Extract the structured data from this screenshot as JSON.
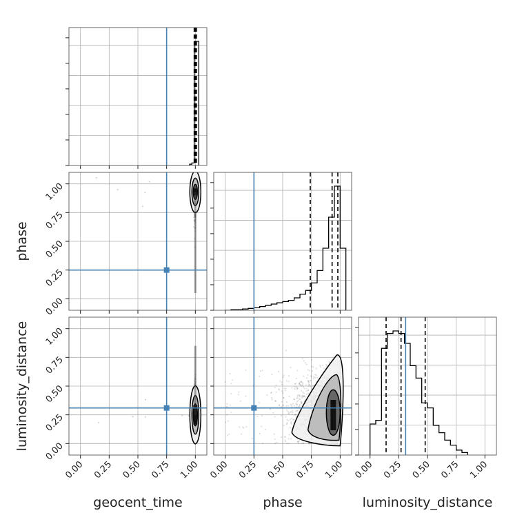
{
  "chart_data": {
    "type": "corner",
    "parameters": [
      "geocent_time",
      "phase",
      "luminosity_distance"
    ],
    "axis_range": [
      -0.1,
      1.1
    ],
    "ticks": [
      0.0,
      0.25,
      0.5,
      0.75,
      1.0
    ],
    "tick_labels": [
      "0.00",
      "0.25",
      "0.50",
      "0.75",
      "1.00"
    ],
    "grid": true,
    "truths": [
      0.75,
      0.25,
      0.31
    ],
    "colors": {
      "truth": "#4682b4",
      "hist": "#000000",
      "grid": "#b0b0b0",
      "points": "#555555"
    },
    "histograms": [
      {
        "param": "geocent_time",
        "bin_edges": [
          0.95,
          0.97,
          0.99,
          1.01,
          1.03
        ],
        "counts": [
          0.01,
          0.02,
          1.0,
          1.0
        ],
        "quantiles": [
          0.99,
          1.0,
          1.01
        ]
      },
      {
        "param": "phase",
        "bin_edges": [
          0.0,
          0.05,
          0.1,
          0.15,
          0.2,
          0.25,
          0.3,
          0.35,
          0.4,
          0.45,
          0.5,
          0.55,
          0.6,
          0.65,
          0.7,
          0.75,
          0.8,
          0.85,
          0.9,
          0.95,
          1.0,
          1.05
        ],
        "counts": [
          0.0,
          0.005,
          0.005,
          0.01,
          0.015,
          0.02,
          0.03,
          0.04,
          0.05,
          0.06,
          0.07,
          0.08,
          0.1,
          0.13,
          0.16,
          0.22,
          0.32,
          0.5,
          0.75,
          1.0,
          0.5
        ],
        "quantiles": [
          0.74,
          0.93,
          0.98
        ]
      },
      {
        "param": "luminosity_distance",
        "bin_edges": [
          0.0,
          0.05,
          0.1,
          0.15,
          0.2,
          0.25,
          0.3,
          0.35,
          0.4,
          0.45,
          0.5,
          0.55,
          0.6,
          0.65,
          0.7,
          0.75,
          0.8,
          0.85
        ],
        "counts": [
          0.25,
          0.28,
          0.86,
          0.98,
          1.0,
          0.98,
          0.9,
          0.72,
          0.62,
          0.42,
          0.38,
          0.24,
          0.18,
          0.12,
          0.08,
          0.04,
          0.02
        ],
        "quantiles": [
          0.14,
          0.27,
          0.48
        ]
      }
    ],
    "scatter_2d": [
      {
        "x_param": "geocent_time",
        "y_param": "phase",
        "center": [
          1.0,
          0.93
        ],
        "spread": [
          0.006,
          0.12
        ]
      },
      {
        "x_param": "geocent_time",
        "y_param": "luminosity_distance",
        "center": [
          1.0,
          0.25
        ],
        "spread": [
          0.006,
          0.12
        ]
      },
      {
        "x_param": "phase",
        "y_param": "luminosity_distance",
        "center": [
          0.92,
          0.3
        ],
        "spread": [
          0.12,
          0.15
        ]
      }
    ]
  }
}
